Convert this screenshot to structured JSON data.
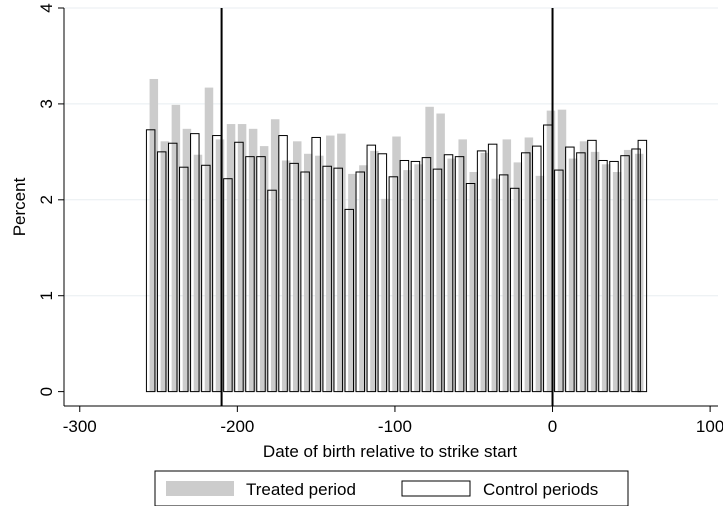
{
  "chart_data": {
    "type": "bar",
    "xlabel": "Date of birth relative to strike start",
    "ylabel": "Percent",
    "xlim": [
      -310,
      105
    ],
    "ylim": [
      -0.15,
      4.0
    ],
    "xticks": [
      -300,
      -200,
      -100,
      0,
      100
    ],
    "xtick_labels": [
      "-300",
      "-200",
      "-100",
      "0",
      "100"
    ],
    "yticks": [
      0,
      1,
      2,
      3,
      4
    ],
    "ytick_labels": [
      "0",
      "1",
      "2",
      "3",
      "4"
    ],
    "grid": "horizontal",
    "legend_position": "bottom",
    "reference_lines_x": [
      -210,
      0
    ],
    "series": [
      {
        "name": "Treated period",
        "style": "filled",
        "color": "#cccccc",
        "x": [
          -253,
          -246,
          -239,
          -232,
          -225,
          -218,
          -211,
          -204,
          -197,
          -190,
          -183,
          -176,
          -169,
          -162,
          -155,
          -148,
          -141,
          -134,
          -127,
          -120,
          -113,
          -106,
          -99,
          -92,
          -85,
          -78,
          -71,
          -64,
          -57,
          -50,
          -43,
          -36,
          -29,
          -22,
          -15,
          -8,
          -1,
          6,
          13,
          20,
          27,
          34,
          41,
          48,
          55
        ],
        "values": [
          3.26,
          2.61,
          2.99,
          2.74,
          2.47,
          3.17,
          2.63,
          2.79,
          2.79,
          2.74,
          2.56,
          2.84,
          2.41,
          2.61,
          2.48,
          2.46,
          2.67,
          2.69,
          2.27,
          2.36,
          2.51,
          2.01,
          2.66,
          2.31,
          2.37,
          2.97,
          2.9,
          2.43,
          2.63,
          2.29,
          2.49,
          2.22,
          2.63,
          2.39,
          2.65,
          2.25,
          2.93,
          2.94,
          2.43,
          2.61,
          2.5,
          2.37,
          2.29,
          2.52,
          2.48
        ]
      },
      {
        "name": "Control periods",
        "style": "outline",
        "color": "#ffffff",
        "x": [
          -255,
          -248,
          -241,
          -234,
          -227,
          -220,
          -213,
          -206,
          -199,
          -192,
          -185,
          -178,
          -171,
          -164,
          -157,
          -150,
          -143,
          -136,
          -129,
          -122,
          -115,
          -108,
          -101,
          -94,
          -87,
          -80,
          -73,
          -66,
          -59,
          -52,
          -45,
          -38,
          -31,
          -24,
          -17,
          -10,
          -3,
          4,
          11,
          18,
          25,
          32,
          39,
          46,
          53,
          57
        ],
        "values": [
          2.73,
          2.5,
          2.59,
          2.34,
          2.69,
          2.36,
          2.67,
          2.22,
          2.6,
          2.45,
          2.45,
          2.1,
          2.67,
          2.38,
          2.29,
          2.65,
          2.35,
          2.33,
          1.9,
          2.29,
          2.57,
          2.48,
          2.24,
          2.41,
          2.4,
          2.44,
          2.32,
          2.47,
          2.45,
          2.17,
          2.51,
          2.58,
          2.26,
          2.12,
          2.49,
          2.56,
          2.78,
          2.31,
          2.55,
          2.49,
          2.62,
          2.41,
          2.4,
          2.46,
          2.53,
          2.62
        ]
      }
    ]
  }
}
